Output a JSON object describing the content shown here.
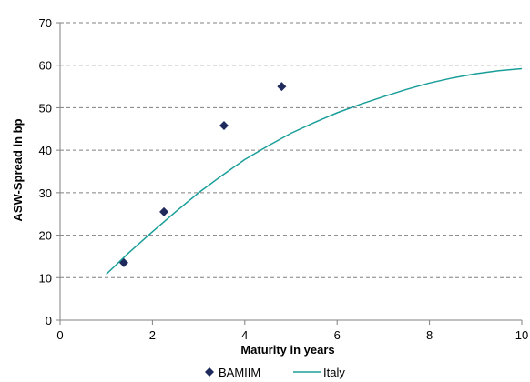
{
  "chart_data": {
    "type": "scatter",
    "title": "",
    "xlabel": "Maturity  in years",
    "ylabel": "ASW-Spread in bp",
    "xlim": [
      0,
      10
    ],
    "ylim": [
      0,
      70
    ],
    "xticks": [
      0,
      2,
      4,
      6,
      8,
      10
    ],
    "yticks": [
      0,
      10,
      20,
      30,
      40,
      50,
      60,
      70
    ],
    "grid": "horizontal-dashed",
    "legend_position": "bottom",
    "colors": {
      "points": "#1f2a5c",
      "curve": "#1a9e9a",
      "grid": "#808080",
      "axis": "#808080"
    },
    "series": [
      {
        "name": "BAMIIM",
        "kind": "scatter",
        "marker": "diamond",
        "x": [
          1.38,
          2.25,
          3.55,
          4.8
        ],
        "y": [
          13.5,
          25.5,
          45.8,
          55
        ]
      },
      {
        "name": "Italy",
        "kind": "line",
        "x": [
          1.0,
          1.5,
          2.0,
          2.5,
          3.0,
          3.5,
          4.0,
          4.5,
          5.0,
          5.5,
          6.0,
          6.5,
          7.0,
          7.5,
          8.0,
          8.5,
          9.0,
          9.5,
          10.0
        ],
        "y": [
          10.8,
          16.0,
          20.8,
          25.5,
          30.0,
          34.0,
          37.8,
          41.0,
          44.0,
          46.5,
          48.8,
          50.8,
          52.6,
          54.3,
          55.8,
          57.0,
          58.0,
          58.7,
          59.2
        ]
      }
    ]
  }
}
